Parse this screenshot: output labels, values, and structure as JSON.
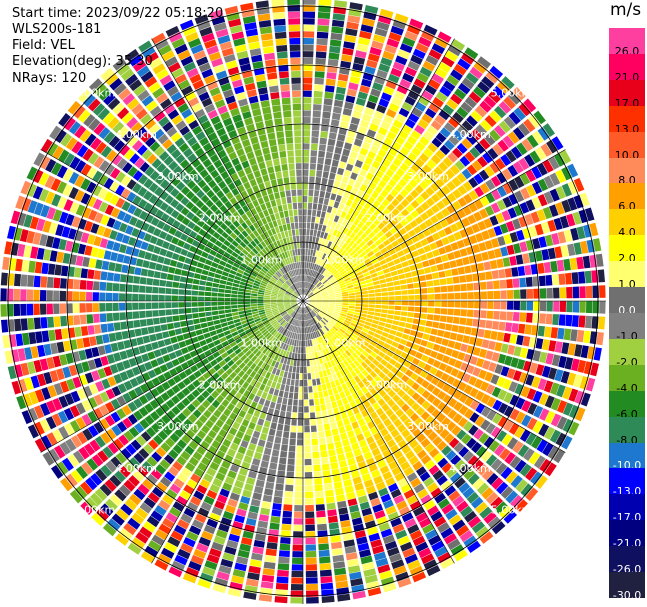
{
  "header": {
    "start_time": "Start time: 2023/09/22 05:18:20",
    "instrument": "WLS200s-181",
    "field": "Field: VEL",
    "elevation": "Elevation(deg): 35.30",
    "nrays": "NRays: 120"
  },
  "colorbar": {
    "unit": "m/s",
    "levels": [
      "26.0",
      "21.0",
      "17.0",
      "13.0",
      "10.0",
      "8.0",
      "6.0",
      "4.0",
      "2.0",
      "1.0",
      "0.0",
      "-1.0",
      "-2.0",
      "-4.0",
      "-6.0",
      "-8.0",
      "-10.0",
      "-13.0",
      "-17.0",
      "-21.0",
      "-26.0",
      "-30.0"
    ],
    "colors": [
      "#ff3fa0",
      "#ff0060",
      "#e8001a",
      "#ff3000",
      "#ff5a28",
      "#ff8a5a",
      "#ffa000",
      "#ffd000",
      "#ffff00",
      "#ffff70",
      "#707070",
      "#808080",
      "#a0d040",
      "#6ab020",
      "#228b22",
      "#2e8b57",
      "#1e78d0",
      "#0000ff",
      "#0000b0",
      "#000080",
      "#101060",
      "#202040"
    ]
  },
  "range_rings": [
    {
      "label": "1.00km"
    },
    {
      "label": "2.00km"
    },
    {
      "label": "3.00km"
    },
    {
      "label": "4.00km"
    },
    {
      "label": "5.00km"
    }
  ]
}
